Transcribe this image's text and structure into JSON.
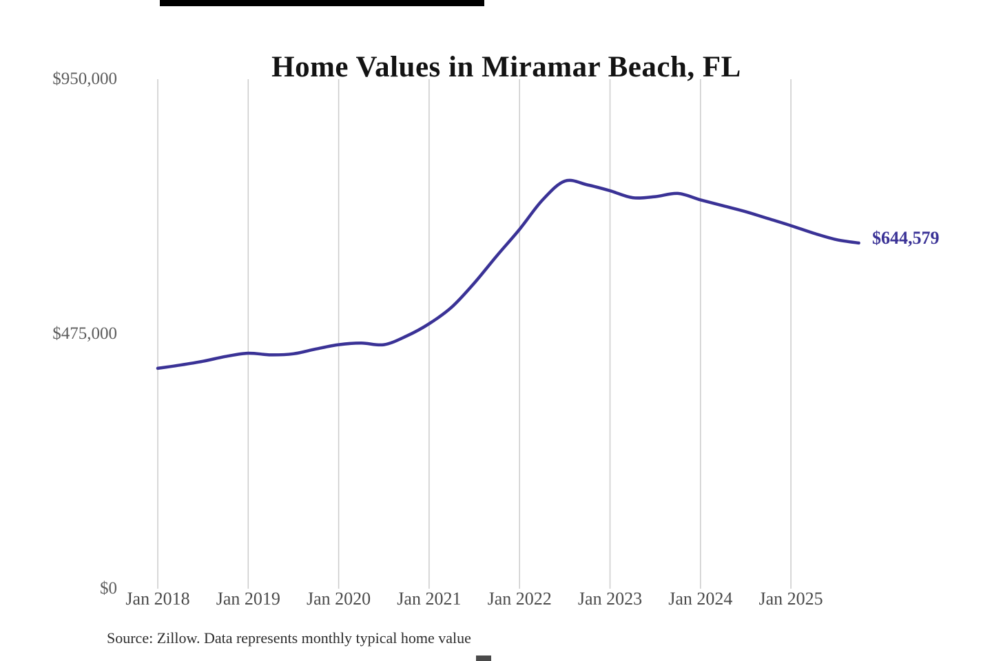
{
  "title": "Home Values in Miramar Beach, FL",
  "source_note": "Source: Zillow. Data represents monthly typical home value",
  "end_label": "$644,579",
  "colors": {
    "line": "#3a3296",
    "end_label": "#3a3296",
    "grid": "#cbcbcb",
    "y_axis_text": "#5c5c5c",
    "x_axis_text": "#4a4a4a",
    "title_text": "#131313",
    "source_text": "#2b2b2b",
    "background": "#ffffff",
    "top_bar": "#000000"
  },
  "y_axis": {
    "ticks": [
      "$950,000",
      "$475,000",
      "$0"
    ]
  },
  "x_axis": {
    "ticks": [
      "Jan 2018",
      "Jan 2019",
      "Jan 2020",
      "Jan 2021",
      "Jan 2022",
      "Jan 2023",
      "Jan 2024",
      "Jan 2025"
    ]
  },
  "chart_data": {
    "type": "line",
    "title": "Home Values in Miramar Beach, FL",
    "xlabel": "",
    "ylabel": "",
    "ylim": [
      0,
      950000
    ],
    "y_tick_values": [
      0,
      475000,
      950000
    ],
    "x_range": [
      "2018-01",
      "2025-10"
    ],
    "grid": "vertical-only",
    "legend": "none",
    "final_value": 644579,
    "series_name": "Typical home value",
    "points": [
      {
        "date": "2018-01",
        "value": 411000
      },
      {
        "date": "2018-04",
        "value": 417000
      },
      {
        "date": "2018-07",
        "value": 424000
      },
      {
        "date": "2018-10",
        "value": 433000
      },
      {
        "date": "2019-01",
        "value": 439000
      },
      {
        "date": "2019-04",
        "value": 436000
      },
      {
        "date": "2019-07",
        "value": 438000
      },
      {
        "date": "2019-10",
        "value": 447000
      },
      {
        "date": "2020-01",
        "value": 455000
      },
      {
        "date": "2020-04",
        "value": 458000
      },
      {
        "date": "2020-07",
        "value": 455000
      },
      {
        "date": "2020-10",
        "value": 471000
      },
      {
        "date": "2021-01",
        "value": 494000
      },
      {
        "date": "2021-04",
        "value": 525000
      },
      {
        "date": "2021-07",
        "value": 570000
      },
      {
        "date": "2021-10",
        "value": 621000
      },
      {
        "date": "2022-01",
        "value": 670000
      },
      {
        "date": "2022-04",
        "value": 724000
      },
      {
        "date": "2022-07",
        "value": 760000
      },
      {
        "date": "2022-10",
        "value": 753000
      },
      {
        "date": "2023-01",
        "value": 742000
      },
      {
        "date": "2023-04",
        "value": 729000
      },
      {
        "date": "2023-07",
        "value": 731000
      },
      {
        "date": "2023-10",
        "value": 737000
      },
      {
        "date": "2024-01",
        "value": 725000
      },
      {
        "date": "2024-04",
        "value": 714000
      },
      {
        "date": "2024-07",
        "value": 703000
      },
      {
        "date": "2024-10",
        "value": 690000
      },
      {
        "date": "2025-01",
        "value": 677000
      },
      {
        "date": "2025-04",
        "value": 663000
      },
      {
        "date": "2025-07",
        "value": 651000
      },
      {
        "date": "2025-10",
        "value": 644579
      }
    ]
  }
}
